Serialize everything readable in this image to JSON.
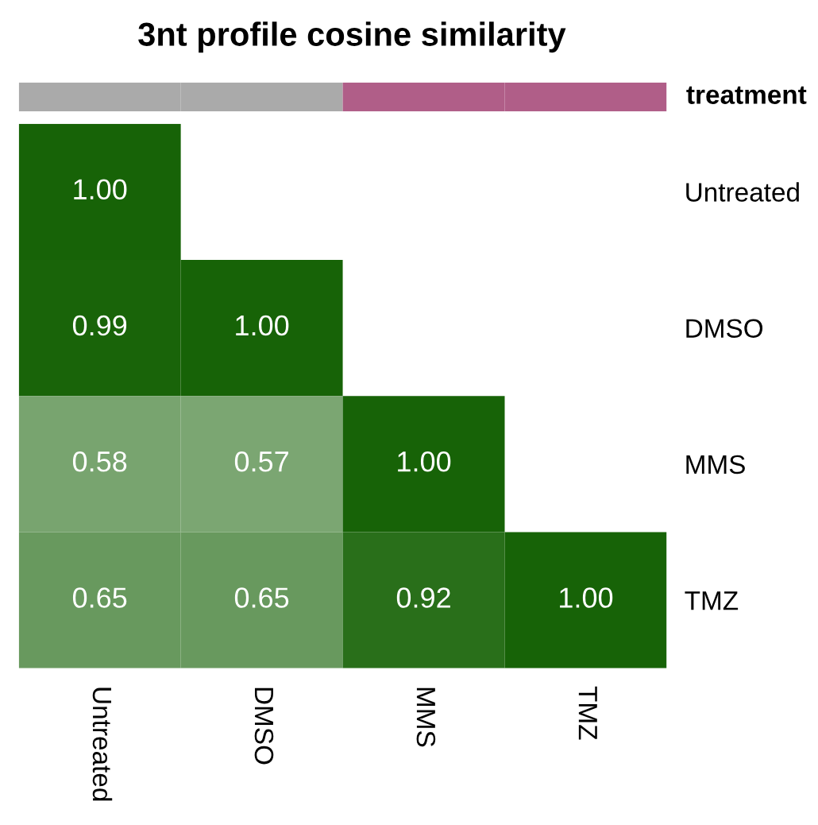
{
  "chart_data": [
    {
      "type": "heatmap",
      "title": "3nt profile cosine similarity",
      "categories": [
        "Untreated",
        "DMSO",
        "MMS",
        "TMZ"
      ],
      "y_categories": [
        "Untreated",
        "DMSO",
        "MMS",
        "TMZ"
      ],
      "cells": [
        [
          1.0,
          null,
          null,
          null
        ],
        [
          0.99,
          1.0,
          null,
          null
        ],
        [
          0.58,
          0.57,
          1.0,
          null
        ],
        [
          0.65,
          0.65,
          0.92,
          1.0
        ]
      ],
      "cell_labels": [
        [
          "1.00",
          null,
          null,
          null
        ],
        [
          "0.99",
          "1.00",
          null,
          null
        ],
        [
          "0.58",
          "0.57",
          "1.00",
          null
        ],
        [
          "0.65",
          "0.65",
          "0.92",
          "1.00"
        ]
      ]
    },
    {
      "type": "other",
      "categories": [
        null,
        null,
        null,
        null
      ],
      "colors": [
        "#aaaaaa",
        "#aaaaaa",
        "#b05e88",
        "#b05e88"
      ],
      "annotations": [
        "treatment"
      ]
    }
  ]
}
